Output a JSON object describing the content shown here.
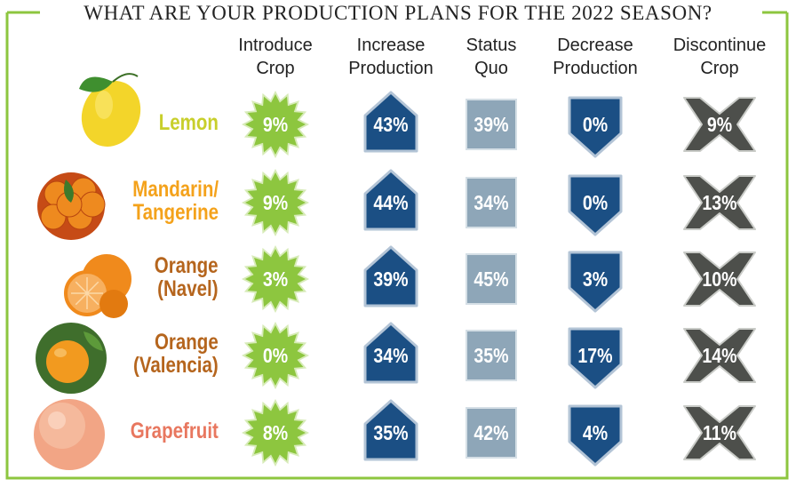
{
  "title": "WHAT ARE YOUR PRODUCTION PLANS FOR THE 2022 SEASON?",
  "colors": {
    "border": "#8dc63f",
    "introduce": "#8dc63f",
    "increase": "#1b4f84",
    "status_quo": "#8ea6b8",
    "decrease": "#1b4f84",
    "discontinue": "#4d4f4b",
    "lemon_label": "#c8cf2b",
    "mandarin_label": "#f4a21b",
    "orange_label": "#b5651d",
    "grapefruit_label": "#e8775f"
  },
  "columns": [
    {
      "label": "Introduce Crop",
      "line1": "Introduce",
      "line2": "Crop",
      "icon": "starburst-icon"
    },
    {
      "label": "Increase Production",
      "line1": "Increase",
      "line2": "Production",
      "icon": "up-arrow-icon"
    },
    {
      "label": "Status Quo",
      "line1": "Status",
      "line2": "Quo",
      "icon": "square-icon"
    },
    {
      "label": "Decrease Production",
      "line1": "Decrease",
      "line2": "Production",
      "icon": "down-arrow-icon"
    },
    {
      "label": "Discontinue Crop",
      "line1": "Discontinue",
      "line2": "Crop",
      "icon": "x-icon"
    }
  ],
  "rows": [
    {
      "line1": "Lemon",
      "line2": "",
      "icon": "lemon-icon"
    },
    {
      "line1": "Mandarin/",
      "line2": "Tangerine",
      "icon": "mandarins-icon"
    },
    {
      "line1": "Orange",
      "line2": "(Navel)",
      "icon": "navel-orange-icon"
    },
    {
      "line1": "Orange",
      "line2": "(Valencia)",
      "icon": "valencia-orange-icon"
    },
    {
      "line1": "Grapefruit",
      "line2": "",
      "icon": "grapefruit-icon"
    }
  ],
  "chart_data": {
    "type": "table",
    "title": "WHAT ARE YOUR PRODUCTION PLANS FOR THE 2022 SEASON?",
    "columns": [
      "Introduce Crop",
      "Increase Production",
      "Status Quo",
      "Decrease Production",
      "Discontinue Crop"
    ],
    "rows": [
      "Lemon",
      "Mandarin/Tangerine",
      "Orange (Navel)",
      "Orange (Valencia)",
      "Grapefruit"
    ],
    "values": [
      [
        9,
        43,
        39,
        0,
        9
      ],
      [
        9,
        44,
        34,
        0,
        13
      ],
      [
        3,
        39,
        45,
        3,
        10
      ],
      [
        0,
        34,
        35,
        17,
        14
      ],
      [
        8,
        35,
        42,
        4,
        11
      ]
    ],
    "unit": "%"
  }
}
